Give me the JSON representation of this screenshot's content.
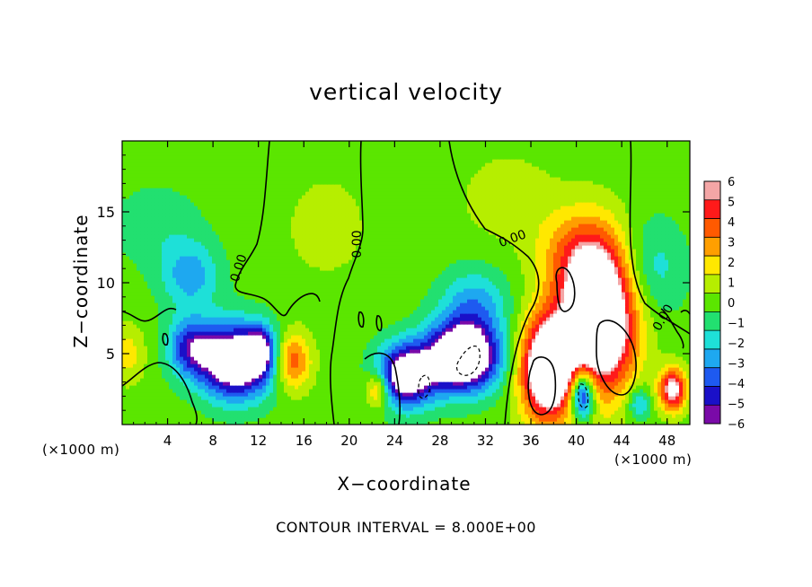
{
  "chart_data": {
    "type": "heatmap",
    "title": "vertical velocity",
    "xlabel": "X−coordinate",
    "ylabel": "Z−coordinate",
    "x_unit_left": "(×1000 m)",
    "x_unit_right": "(×1000 m)",
    "xlim": [
      0,
      50
    ],
    "ylim": [
      0,
      20
    ],
    "x_ticks": [
      4,
      8,
      12,
      16,
      20,
      24,
      28,
      32,
      36,
      40,
      44,
      48
    ],
    "x_tick_labels": [
      "4",
      "8",
      "12",
      "16",
      "20",
      "24",
      "28",
      "32",
      "36",
      "40",
      "44",
      "48"
    ],
    "y_ticks": [
      5,
      10,
      15
    ],
    "y_tick_labels": [
      "5",
      "10",
      "15"
    ],
    "colorbar": {
      "levels": [
        6,
        5,
        4,
        3,
        2,
        1,
        0,
        -1,
        -2,
        -3,
        -4,
        -5,
        -6
      ],
      "labels": [
        "6",
        "5",
        "4",
        "3",
        "2",
        "1",
        "0",
        "−1",
        "−2",
        "−3",
        "−4",
        "−5",
        "−6"
      ],
      "colors": [
        "#f4a6a6",
        "#ff1a1a",
        "#ff5a00",
        "#ff9f00",
        "#ffe800",
        "#b6ee00",
        "#5be600",
        "#22e070",
        "#1ee0d8",
        "#1ea8f0",
        "#1e5af0",
        "#1a10c8",
        "#7a0aa8"
      ]
    },
    "contour_label": "0.00",
    "contour_interval_text": "CONTOUR INTERVAL = 8.000E+00",
    "features": [
      {
        "x": 10,
        "z": 4.5,
        "w": -9,
        "sx": 3.2,
        "sz": 2.6
      },
      {
        "x": 6,
        "z": 5.5,
        "w": -4.5,
        "sx": 2.0,
        "sz": 2.0
      },
      {
        "x": 12.2,
        "z": 5.3,
        "w": -4,
        "sx": 1.2,
        "sz": 1.6
      },
      {
        "x": 6,
        "z": 10.5,
        "w": -3,
        "sx": 2.6,
        "sz": 2.4
      },
      {
        "x": 15,
        "z": 4.5,
        "w": 4.5,
        "sx": 1.6,
        "sz": 2.0
      },
      {
        "x": 25,
        "z": 3.5,
        "w": -8,
        "sx": 2.5,
        "sz": 2.2
      },
      {
        "x": 30,
        "z": 4.8,
        "w": -10,
        "sx": 3.2,
        "sz": 2.4
      },
      {
        "x": 31,
        "z": 8.5,
        "w": -3,
        "sx": 3.0,
        "sz": 2.5
      },
      {
        "x": 22.5,
        "z": 2.5,
        "w": 4,
        "sx": 1.0,
        "sz": 1.3
      },
      {
        "x": 37.5,
        "z": 4.0,
        "w": 10,
        "sx": 2.4,
        "sz": 3.6
      },
      {
        "x": 42,
        "z": 7.5,
        "w": 11,
        "sx": 3.2,
        "sz": 5.0
      },
      {
        "x": 40,
        "z": 12.0,
        "w": 3,
        "sx": 3.5,
        "sz": 3.2
      },
      {
        "x": 40.5,
        "z": 2.2,
        "w": -8,
        "sx": 1.1,
        "sz": 1.8
      },
      {
        "x": 48.5,
        "z": 2.5,
        "w": 7,
        "sx": 1.2,
        "sz": 1.5
      },
      {
        "x": 46.5,
        "z": 11.0,
        "w": -2.2,
        "sx": 3.0,
        "sz": 3.5
      },
      {
        "x": 45.5,
        "z": 1.5,
        "w": -3,
        "sx": 1.0,
        "sz": 1.2
      },
      {
        "x": 0.5,
        "z": 5,
        "w": 2,
        "sx": 1.5,
        "sz": 2
      },
      {
        "x": 3,
        "z": 14,
        "w": -1.2,
        "sx": 4,
        "sz": 3
      },
      {
        "x": 18,
        "z": 14,
        "w": 0.9,
        "sx": 4,
        "sz": 4
      },
      {
        "x": 34,
        "z": 16,
        "w": 1.2,
        "sx": 4,
        "sz": 3
      }
    ]
  }
}
